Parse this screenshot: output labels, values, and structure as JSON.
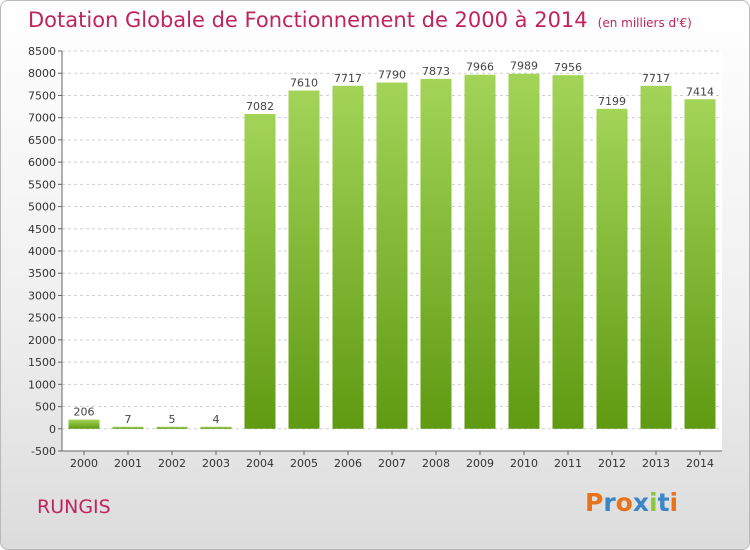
{
  "chart_data": {
    "type": "bar",
    "title": "Dotation Globale de Fonctionnement de 2000 à 2014",
    "subtitle": "(en milliers d'€)",
    "categories": [
      "2000",
      "2001",
      "2002",
      "2003",
      "2004",
      "2005",
      "2006",
      "2007",
      "2008",
      "2009",
      "2010",
      "2011",
      "2012",
      "2013",
      "2014"
    ],
    "values": [
      206,
      7,
      5,
      4,
      7082,
      7610,
      7717,
      7790,
      7873,
      7966,
      7989,
      7956,
      7199,
      7717,
      7414
    ],
    "data_labels": [
      "206",
      "7",
      "5",
      "4",
      "7082",
      "7610",
      "7717",
      "7790",
      "7873",
      "7966",
      "7989",
      "7956",
      "7199",
      "7717",
      "7414"
    ],
    "ylim": [
      -500,
      8500
    ],
    "yticks": [
      -500,
      0,
      500,
      1000,
      1500,
      2000,
      2500,
      3000,
      3500,
      4000,
      4500,
      5000,
      5500,
      6000,
      6500,
      7000,
      7500,
      8000,
      8500
    ],
    "ytick_labels": [
      "-500",
      "0",
      "500",
      "1000",
      "1500",
      "2000",
      "2500",
      "3000",
      "3500",
      "4000",
      "4500",
      "5000",
      "5500",
      "6000",
      "6500",
      "7000",
      "7500",
      "8000",
      "8500"
    ],
    "grid": true,
    "bar_color_light": "#a3d458",
    "bar_color_dark": "#5f9a12",
    "xlabel": "",
    "ylabel": ""
  },
  "commune": "RUNGIS",
  "logo": {
    "letters": [
      "P",
      "r",
      "o",
      "x",
      "i",
      "t",
      "i"
    ],
    "colors": [
      "#e8731b",
      "#3a86c8",
      "#e8731b",
      "#3a86c8",
      "#8cc63f",
      "#3a86c8",
      "#e8731b"
    ]
  }
}
